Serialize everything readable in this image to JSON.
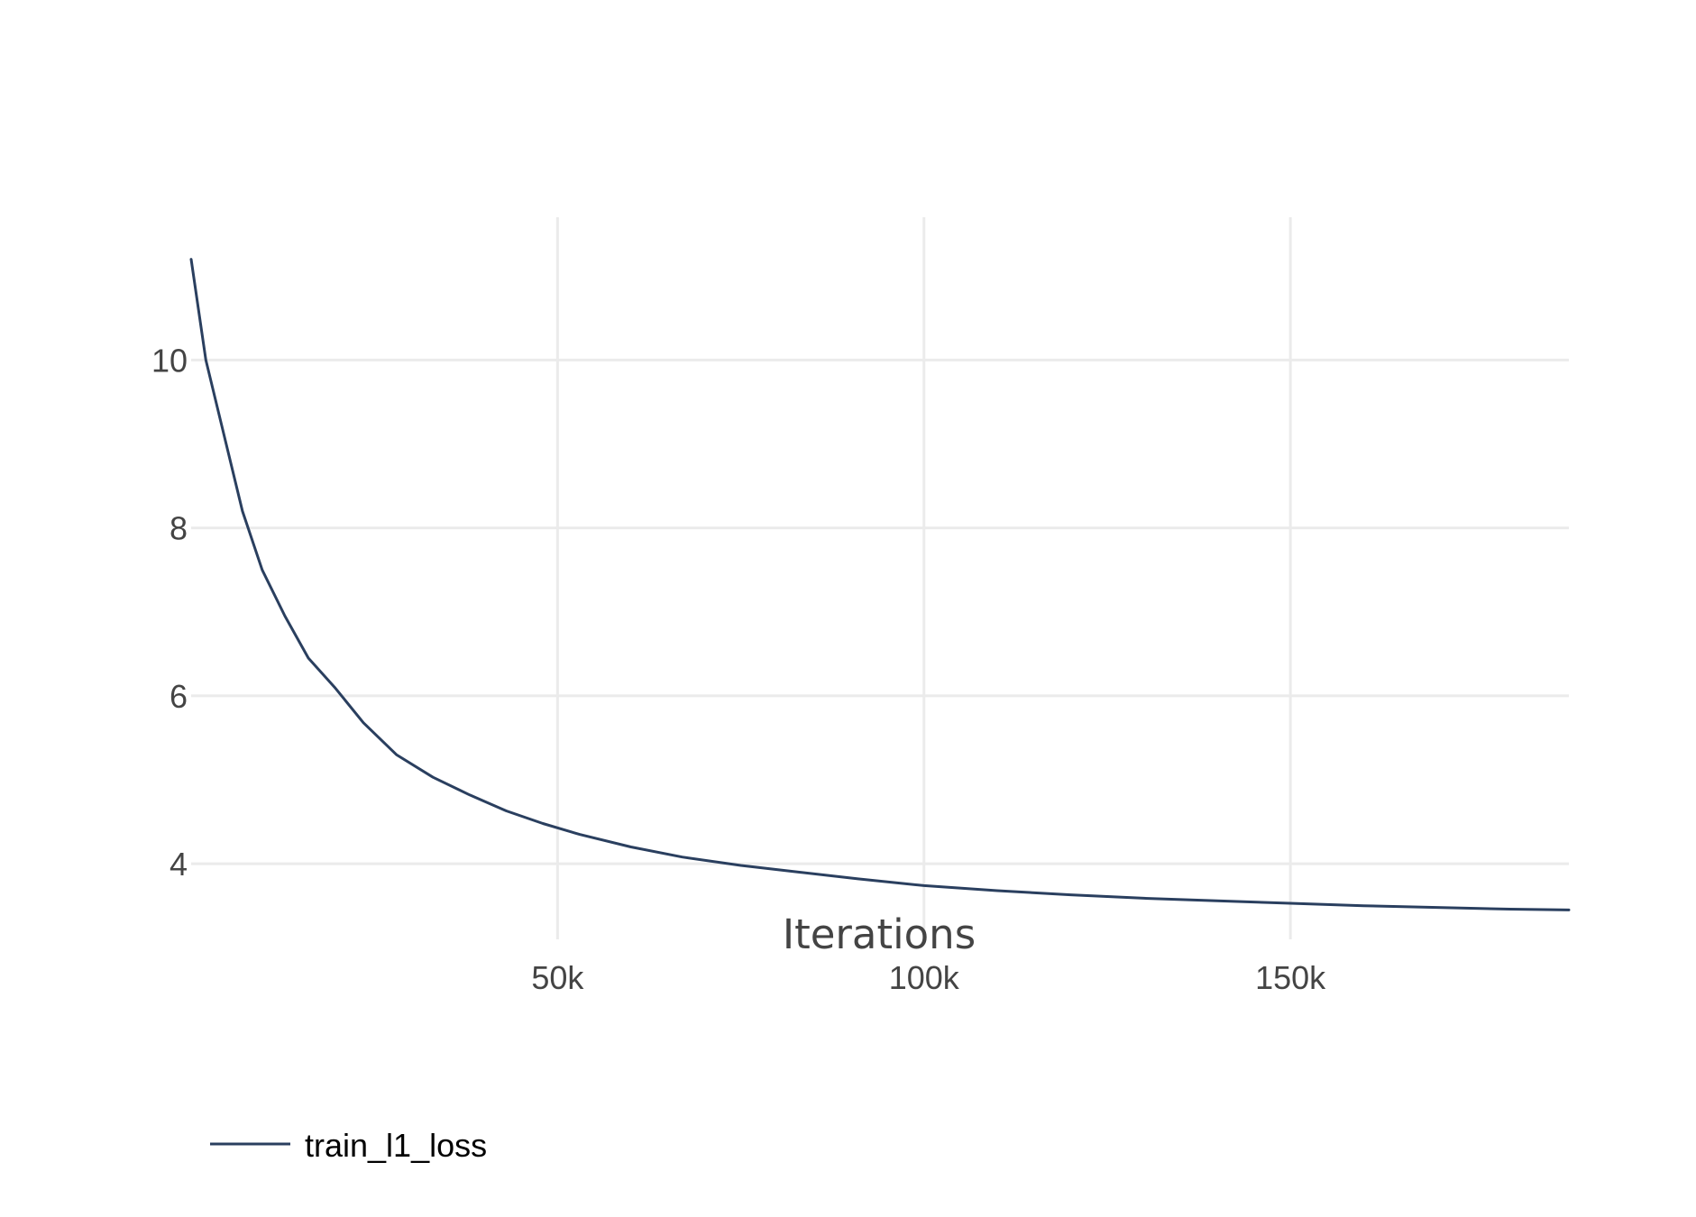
{
  "chart_data": {
    "type": "line",
    "title": "",
    "xlabel": "Iterations",
    "ylabel": "",
    "xlim": [
      0,
      188000
    ],
    "ylim": [
      3.1,
      11.7
    ],
    "x_ticks": [
      50000,
      100000,
      150000
    ],
    "x_tick_labels": [
      "50k",
      "100k",
      "150k"
    ],
    "y_ticks": [
      4,
      6,
      8,
      10
    ],
    "y_tick_labels": [
      "4",
      "6",
      "8",
      "10"
    ],
    "grid": true,
    "legend_position": "bottom-left",
    "series": [
      {
        "name": "train_l1_loss",
        "color": "#2a3f5f",
        "x": [
          0,
          2000,
          4500,
          7000,
          9700,
          12800,
          16000,
          19600,
          23500,
          28000,
          33000,
          38000,
          43000,
          48000,
          53000,
          60000,
          67000,
          75000,
          83000,
          91000,
          100000,
          110000,
          120000,
          130000,
          140000,
          150000,
          160000,
          170000,
          180000,
          188000
        ],
        "y": [
          11.2,
          10.0,
          9.1,
          8.2,
          7.5,
          6.95,
          6.45,
          6.1,
          5.68,
          5.3,
          5.03,
          4.82,
          4.63,
          4.48,
          4.35,
          4.2,
          4.08,
          3.98,
          3.9,
          3.82,
          3.74,
          3.68,
          3.63,
          3.59,
          3.56,
          3.53,
          3.5,
          3.48,
          3.46,
          3.45
        ]
      }
    ]
  }
}
